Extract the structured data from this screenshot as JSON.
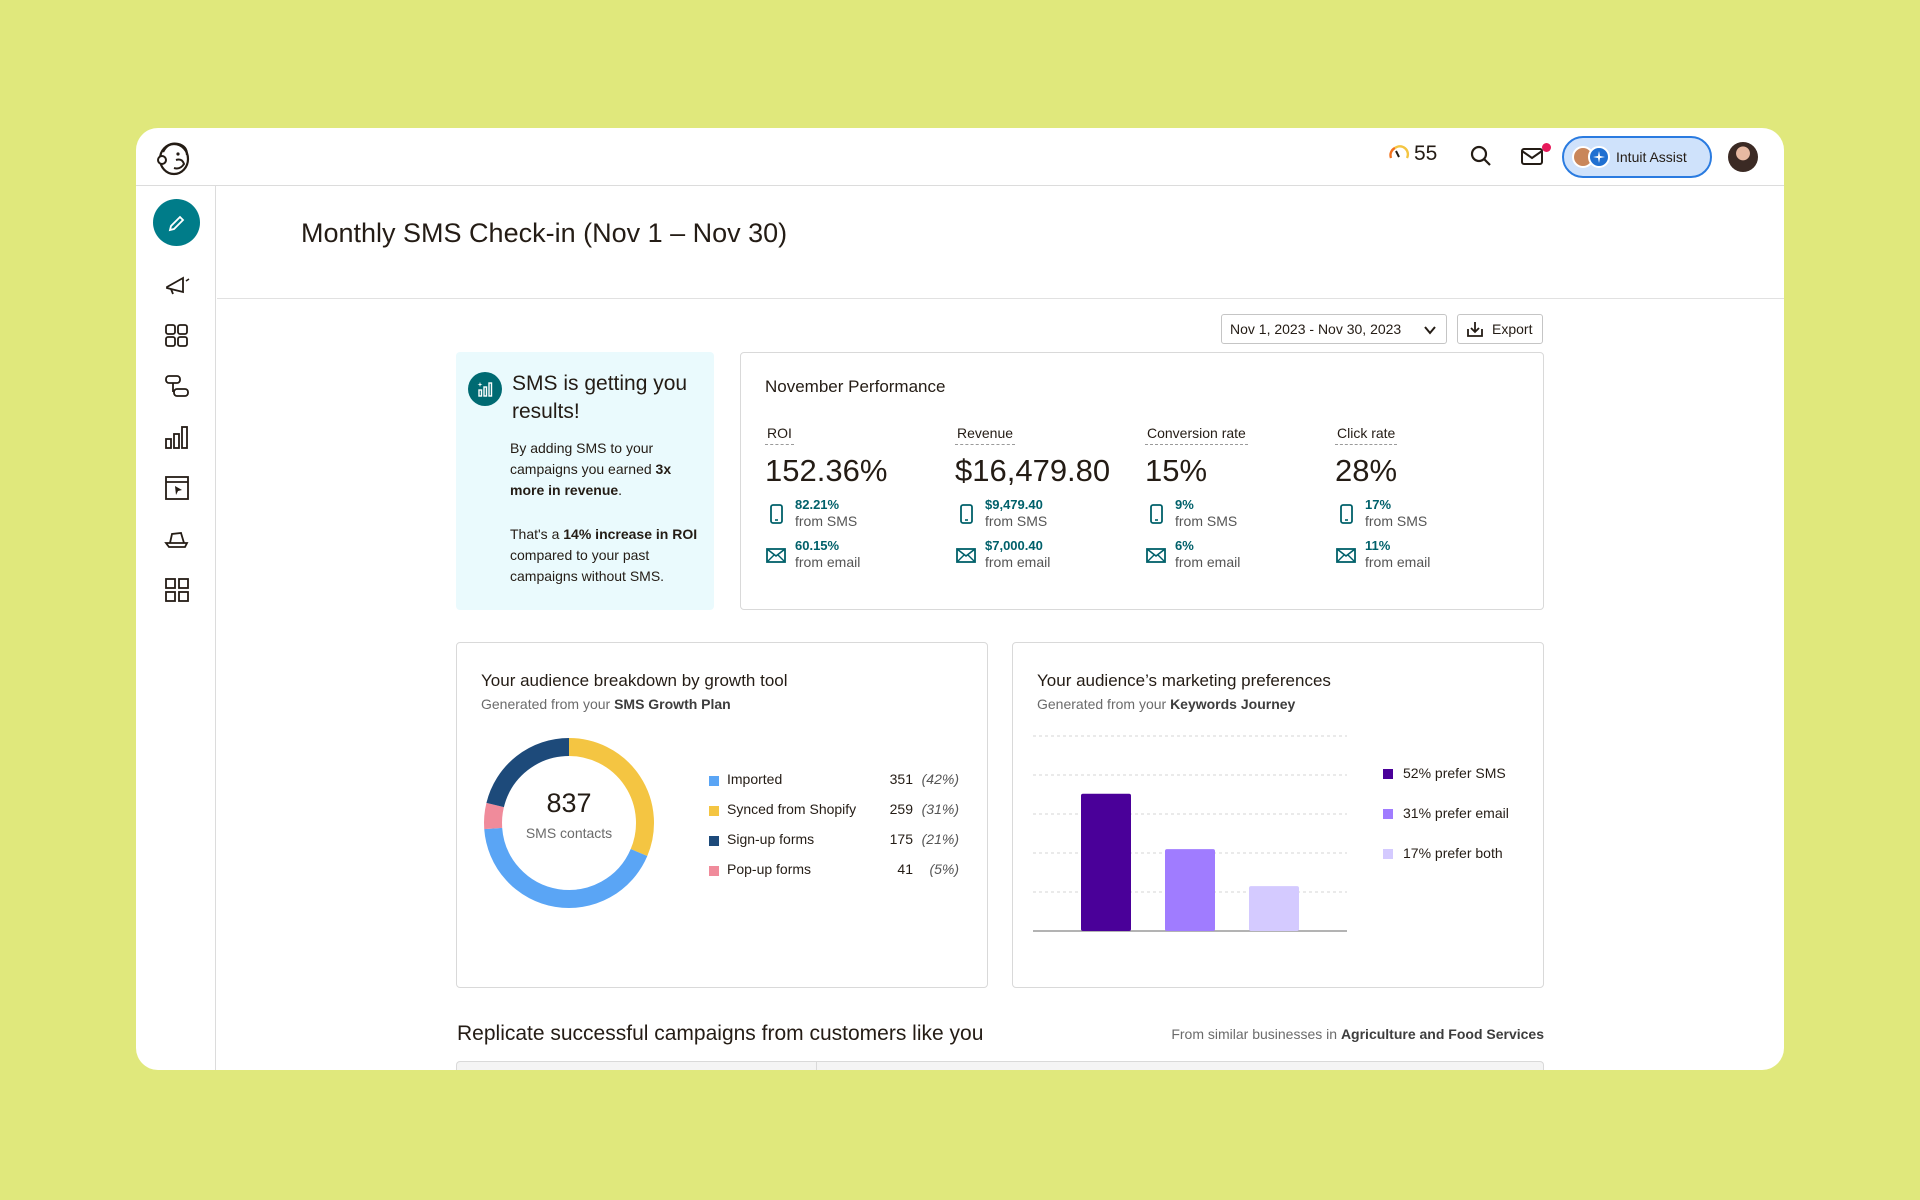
{
  "topbar": {
    "score": "55",
    "assist_label": "Intuit Assist"
  },
  "page": {
    "title": "Monthly SMS Check-in (Nov 1 – Nov 30)"
  },
  "controls": {
    "date_range": "Nov 1, 2023 - Nov 30, 2023",
    "export_label": "Export"
  },
  "promo": {
    "title": "SMS is getting you results!",
    "p1_pre": "By adding SMS to your campaigns you earned ",
    "p1_bold": "3x more in revenue",
    "p1_post": ".",
    "p2_pre": "That's a ",
    "p2_bold": "14% increase in ROI",
    "p2_post": " compared to your past campaigns without SMS."
  },
  "performance": {
    "title": "November Performance",
    "metrics": [
      {
        "label": "ROI",
        "value": "152.36%",
        "sms_pct": "82.21%",
        "sms_src": "from SMS",
        "email_pct": "60.15%",
        "email_src": "from email"
      },
      {
        "label": "Revenue",
        "value": "$16,479.80",
        "sms_pct": "$9,479.40",
        "sms_src": "from SMS",
        "email_pct": "$7,000.40",
        "email_src": "from email"
      },
      {
        "label": "Conversion rate",
        "value": "15%",
        "sms_pct": "9%",
        "sms_src": "from SMS",
        "email_pct": "6%",
        "email_src": "from email"
      },
      {
        "label": "Click rate",
        "value": "28%",
        "sms_pct": "17%",
        "sms_src": "from SMS",
        "email_pct": "11%",
        "email_src": "from email"
      }
    ]
  },
  "breakdown": {
    "title": "Your audience breakdown by growth tool",
    "subtitle_pre": "Generated from your ",
    "subtitle_bold": "SMS Growth Plan",
    "total": "837",
    "total_label": "SMS contacts",
    "items": [
      {
        "name": "Imported",
        "count": "351",
        "pct": "(42%)",
        "color": "#5aa5f5"
      },
      {
        "name": "Synced from Shopify",
        "count": "259",
        "pct": "(31%)",
        "color": "#f4c542"
      },
      {
        "name": "Sign-up forms",
        "count": "175",
        "pct": "(21%)",
        "color": "#1d4a7a"
      },
      {
        "name": "Pop-up forms",
        "count": "41",
        "pct": "(5%)",
        "color": "#f08b9b"
      }
    ]
  },
  "preferences": {
    "title": "Your audience’s marketing preferences",
    "subtitle_pre": "Generated from your ",
    "subtitle_bold": "Keywords Journey",
    "items": [
      {
        "label": "52% prefer SMS",
        "color": "#4a0099"
      },
      {
        "label": "31% prefer email",
        "color": "#a07cff"
      },
      {
        "label": "17% prefer both",
        "color": "#d4caff"
      }
    ]
  },
  "chart_data": {
    "type": "bar",
    "categories": [
      "SMS",
      "Email",
      "Both"
    ],
    "values": [
      52,
      31,
      17
    ],
    "ylim": [
      0,
      75
    ],
    "grid": true,
    "legend": "right"
  },
  "section": {
    "title": "Replicate successful campaigns from customers like you",
    "note_pre": "From similar businesses in ",
    "note_bold": "Agriculture and Food Services"
  }
}
